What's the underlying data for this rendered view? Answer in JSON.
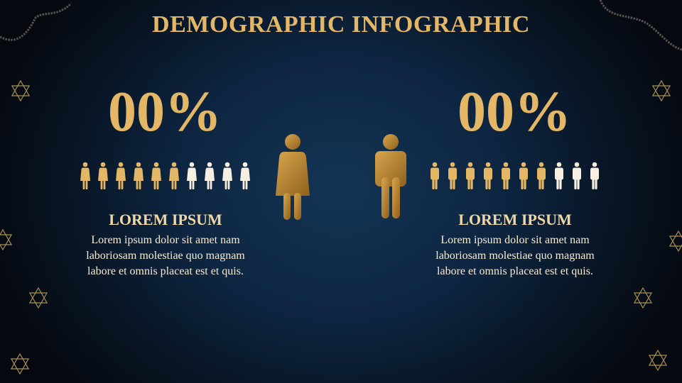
{
  "title": "DEMOGRAPHIC INFOGRAPHIC",
  "colors": {
    "gold": "#e3b765",
    "cream": "#f7f0e2",
    "background": "#0d2540"
  },
  "female": {
    "percent": "00%",
    "filled_icons": 6,
    "total_icons": 10,
    "heading": "LOREM IPSUM",
    "body": "Lorem ipsum dolor sit amet nam laboriosam molestiae quo magnam labore et omnis placeat est et quis.",
    "icon": "female-person-icon"
  },
  "male": {
    "percent": "00%",
    "filled_icons": 7,
    "total_icons": 10,
    "heading": "LOREM IPSUM",
    "body": "Lorem ipsum dolor sit amet nam laboriosam molestiae quo magnam labore et omnis placeat est et quis.",
    "icon": "male-person-icon"
  }
}
